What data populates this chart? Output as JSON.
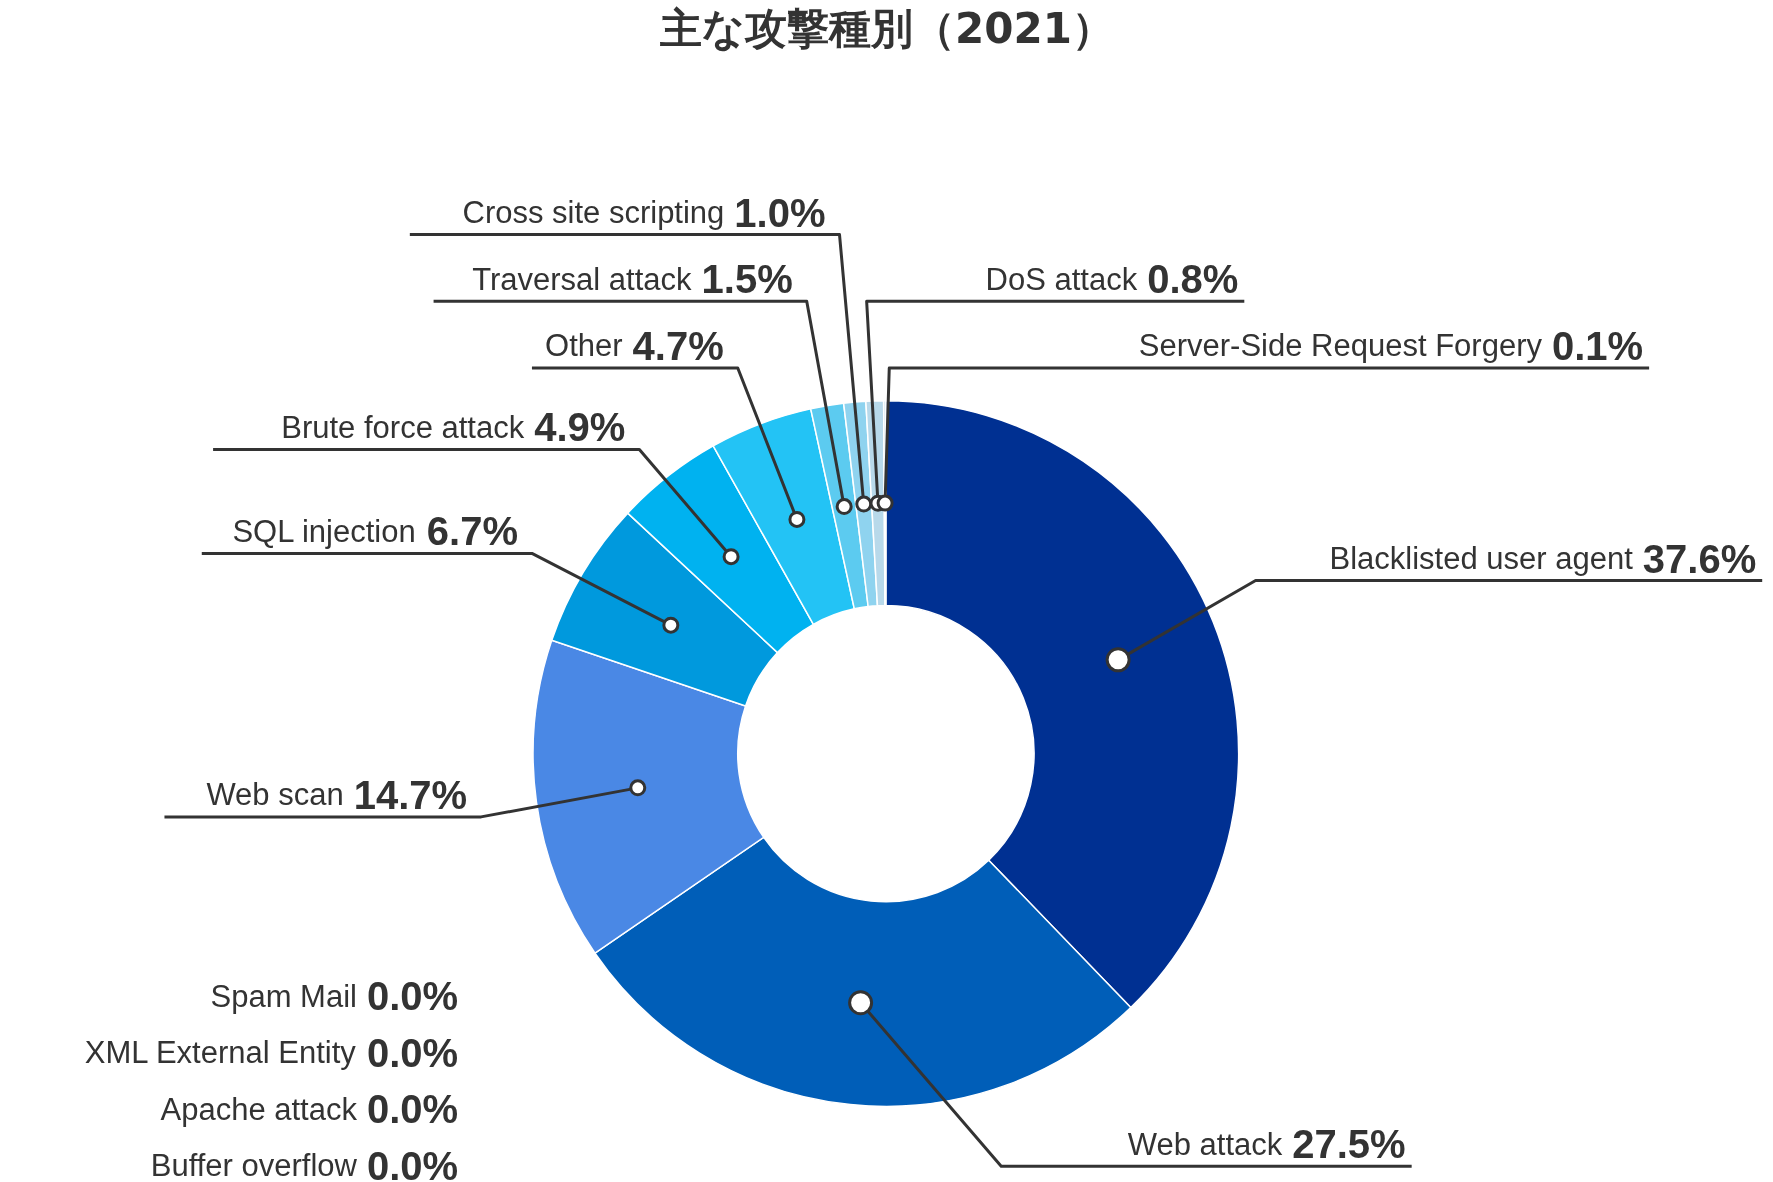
{
  "chart_data": {
    "type": "donut",
    "title": "主な攻撃種別（2021）",
    "categories": [
      "Blacklisted user agent",
      "Web attack",
      "Web scan",
      "SQL injection",
      "Brute force attack",
      "Other",
      "Traversal attack",
      "Cross site scripting",
      "DoS attack",
      "Server-Side Request Forgery",
      "Spam Mail",
      "XML External Entity",
      "Apache attack",
      "Buffer overflow"
    ],
    "values": [
      37.6,
      27.5,
      14.7,
      6.7,
      4.9,
      4.7,
      1.5,
      1.0,
      0.8,
      0.1,
      0.0,
      0.0,
      0.0,
      0.0
    ],
    "value_labels": [
      "37.6%",
      "27.5%",
      "14.7%",
      "6.7%",
      "4.9%",
      "4.7%",
      "1.5%",
      "1.0%",
      "0.8%",
      "0.1%",
      "0.0%",
      "0.0%",
      "0.0%",
      "0.0%"
    ],
    "colors": [
      "#003092",
      "#005eb8",
      "#4a88e5",
      "#0099dd",
      "#00b2f0",
      "#23c3f5",
      "#5ccbf0",
      "#8fd3ef",
      "#b8d9ea",
      "#d0e4ee",
      "#d0e4ee",
      "#d0e4ee",
      "#d0e4ee",
      "#d0e4ee"
    ]
  }
}
